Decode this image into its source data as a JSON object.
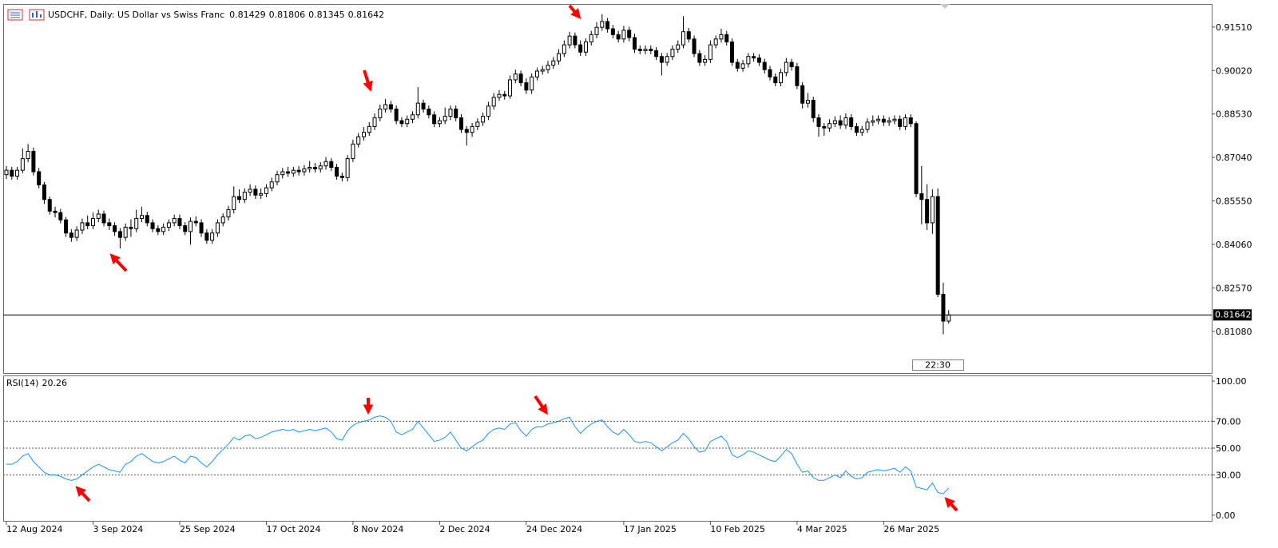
{
  "chart_data": [
    {
      "type": "candlestick",
      "title": "USDCHF, Daily:  US Dollar vs Swiss Franc",
      "timer": "22:30",
      "series": [
        {
          "name": "USDCHF",
          "up_color": "#ffffff",
          "down_color": "#000000",
          "edge_color": "#000000",
          "open": [
            0.8645,
            0.866,
            0.864,
            0.866,
            0.87,
            0.8725,
            0.8655,
            0.861,
            0.856,
            0.852,
            0.8515,
            0.849,
            0.8445,
            0.843,
            0.8455,
            0.848,
            0.847,
            0.8495,
            0.851,
            0.848,
            0.847,
            0.845,
            0.843,
            0.8465,
            0.846,
            0.8495,
            0.8505,
            0.848,
            0.846,
            0.845,
            0.8465,
            0.848,
            0.8495,
            0.847,
            0.845,
            0.8485,
            0.848,
            0.8445,
            0.842,
            0.8445,
            0.848,
            0.85,
            0.8525,
            0.857,
            0.856,
            0.8585,
            0.8595,
            0.8575,
            0.858,
            0.86,
            0.862,
            0.8645,
            0.8655,
            0.865,
            0.866,
            0.8655,
            0.8665,
            0.867,
            0.8665,
            0.8675,
            0.869,
            0.867,
            0.864,
            0.8635,
            0.87,
            0.875,
            0.8775,
            0.879,
            0.881,
            0.884,
            0.887,
            0.8885,
            0.887,
            0.883,
            0.882,
            0.8835,
            0.885,
            0.889,
            0.887,
            0.885,
            0.882,
            0.883,
            0.8845,
            0.887,
            0.884,
            0.88,
            0.879,
            0.881,
            0.8825,
            0.8845,
            0.888,
            0.891,
            0.892,
            0.8915,
            0.897,
            0.899,
            0.896,
            0.8935,
            0.898,
            0.9,
            0.9005,
            0.902,
            0.9035,
            0.906,
            0.909,
            0.912,
            0.909,
            0.9065,
            0.91,
            0.9125,
            0.915,
            0.917,
            0.9145,
            0.9125,
            0.911,
            0.914,
            0.9115,
            0.9075,
            0.907,
            0.9075,
            0.907,
            0.905,
            0.903,
            0.905,
            0.9075,
            0.909,
            0.9135,
            0.911,
            0.906,
            0.903,
            0.904,
            0.909,
            0.911,
            0.9125,
            0.91,
            0.903,
            0.901,
            0.9025,
            0.905,
            0.9045,
            0.903,
            0.9005,
            0.898,
            0.896,
            0.8995,
            0.903,
            0.9015,
            0.895,
            0.889,
            0.89,
            0.884,
            0.881,
            0.8805,
            0.882,
            0.883,
            0.8815,
            0.884,
            0.881,
            0.879,
            0.88,
            0.8825,
            0.883,
            0.8835,
            0.8825,
            0.883,
            0.8835,
            0.881,
            0.884,
            0.882,
            0.858,
            0.856,
            0.848,
            0.857,
            0.8235,
            0.81429
          ],
          "high": [
            0.8675,
            0.8672,
            0.8672,
            0.8735,
            0.875,
            0.8738,
            0.8668,
            0.862,
            0.857,
            0.8535,
            0.8528,
            0.85,
            0.8458,
            0.8468,
            0.8495,
            0.8505,
            0.8515,
            0.8525,
            0.8522,
            0.8495,
            0.8482,
            0.8462,
            0.8478,
            0.8492,
            0.8525,
            0.8535,
            0.8518,
            0.8492,
            0.8472,
            0.8478,
            0.8492,
            0.8508,
            0.8508,
            0.8482,
            0.8498,
            0.8502,
            0.8492,
            0.8458,
            0.8458,
            0.8492,
            0.8512,
            0.8538,
            0.8605,
            0.8595,
            0.8598,
            0.8612,
            0.8608,
            0.8598,
            0.8612,
            0.8635,
            0.8658,
            0.8668,
            0.8672,
            0.8672,
            0.8675,
            0.8678,
            0.8692,
            0.8685,
            0.8688,
            0.8705,
            0.8702,
            0.8682,
            0.8652,
            0.8712,
            0.8765,
            0.8788,
            0.8808,
            0.8825,
            0.8855,
            0.8885,
            0.8905,
            0.8898,
            0.8882,
            0.8842,
            0.8848,
            0.8862,
            0.8945,
            0.8902,
            0.8882,
            0.8862,
            0.8842,
            0.8875,
            0.8882,
            0.8882,
            0.8852,
            0.8812,
            0.8822,
            0.8838,
            0.8858,
            0.8895,
            0.8925,
            0.8935,
            0.8932,
            0.8985,
            0.9005,
            0.9002,
            0.8975,
            0.8992,
            0.9012,
            0.9018,
            0.9035,
            0.9048,
            0.9075,
            0.9105,
            0.9135,
            0.9132,
            0.9105,
            0.9112,
            0.9138,
            0.9168,
            0.9195,
            0.9182,
            0.9158,
            0.9138,
            0.9155,
            0.9152,
            0.9128,
            0.9088,
            0.9088,
            0.9088,
            0.9082,
            0.9062,
            0.9062,
            0.9088,
            0.9105,
            0.9188,
            0.9148,
            0.9122,
            0.9072,
            0.9055,
            0.9105,
            0.9122,
            0.9145,
            0.9138,
            0.9112,
            0.9042,
            0.9038,
            0.9062,
            0.9062,
            0.9058,
            0.9042,
            0.9018,
            0.8992,
            0.9008,
            0.9045,
            0.9042,
            0.9028,
            0.8962,
            0.8925,
            0.8912,
            0.8852,
            0.8822,
            0.8835,
            0.8845,
            0.8848,
            0.8855,
            0.8852,
            0.8822,
            0.8812,
            0.8838,
            0.8848,
            0.8848,
            0.8848,
            0.8842,
            0.8848,
            0.8848,
            0.8852,
            0.8852,
            0.8828,
            0.8675,
            0.8612,
            0.8595,
            0.8598,
            0.8275,
            0.81806
          ],
          "low": [
            0.863,
            0.8628,
            0.8628,
            0.865,
            0.8688,
            0.8642,
            0.8598,
            0.8545,
            0.8508,
            0.8498,
            0.8478,
            0.8432,
            0.8415,
            0.8418,
            0.8442,
            0.8458,
            0.8458,
            0.8482,
            0.8468,
            0.8455,
            0.8435,
            0.8392,
            0.8418,
            0.8432,
            0.8448,
            0.8482,
            0.8468,
            0.8448,
            0.8438,
            0.8438,
            0.8452,
            0.8468,
            0.8458,
            0.8438,
            0.8405,
            0.8468,
            0.8432,
            0.8408,
            0.8408,
            0.8432,
            0.8468,
            0.8488,
            0.8512,
            0.8548,
            0.8548,
            0.8572,
            0.8562,
            0.8562,
            0.8568,
            0.8588,
            0.8608,
            0.8632,
            0.8638,
            0.8638,
            0.8642,
            0.8642,
            0.8652,
            0.8652,
            0.8652,
            0.8662,
            0.8658,
            0.8628,
            0.8622,
            0.8622,
            0.8688,
            0.8738,
            0.8762,
            0.8778,
            0.8798,
            0.8828,
            0.8858,
            0.8858,
            0.8818,
            0.8808,
            0.8808,
            0.8822,
            0.8838,
            0.8858,
            0.8838,
            0.8808,
            0.8808,
            0.8818,
            0.8832,
            0.8828,
            0.8788,
            0.8745,
            0.8775,
            0.8798,
            0.8812,
            0.8832,
            0.8868,
            0.8898,
            0.8902,
            0.8905,
            0.8958,
            0.8948,
            0.8922,
            0.8922,
            0.8968,
            0.8988,
            0.8992,
            0.9008,
            0.9022,
            0.9048,
            0.9078,
            0.9078,
            0.9052,
            0.9052,
            0.9088,
            0.9112,
            0.9138,
            0.9132,
            0.9112,
            0.9098,
            0.9098,
            0.9102,
            0.9062,
            0.9058,
            0.9058,
            0.9058,
            0.9038,
            0.8985,
            0.9018,
            0.9038,
            0.9062,
            0.9078,
            0.9098,
            0.9048,
            0.9018,
            0.9018,
            0.9028,
            0.9078,
            0.9098,
            0.9088,
            0.9018,
            0.8998,
            0.8998,
            0.9012,
            0.9032,
            0.9018,
            0.8992,
            0.8968,
            0.8948,
            0.8948,
            0.8982,
            0.9002,
            0.8938,
            0.8872,
            0.8875,
            0.8825,
            0.8775,
            0.8778,
            0.8792,
            0.8808,
            0.8802,
            0.8802,
            0.8798,
            0.8778,
            0.8778,
            0.8788,
            0.8812,
            0.8818,
            0.8812,
            0.8812,
            0.8818,
            0.8798,
            0.8798,
            0.8808,
            0.8568,
            0.8475,
            0.8455,
            0.8442,
            0.8225,
            0.8098,
            0.81345
          ],
          "close": [
            0.866,
            0.864,
            0.866,
            0.87,
            0.8725,
            0.8655,
            0.861,
            0.856,
            0.852,
            0.8515,
            0.849,
            0.8445,
            0.843,
            0.8455,
            0.848,
            0.847,
            0.8495,
            0.851,
            0.848,
            0.847,
            0.845,
            0.843,
            0.8465,
            0.846,
            0.8495,
            0.8505,
            0.848,
            0.846,
            0.845,
            0.8465,
            0.848,
            0.8495,
            0.847,
            0.845,
            0.8485,
            0.848,
            0.8445,
            0.842,
            0.8445,
            0.848,
            0.85,
            0.8525,
            0.857,
            0.856,
            0.8585,
            0.8595,
            0.8575,
            0.858,
            0.86,
            0.862,
            0.8645,
            0.8655,
            0.865,
            0.866,
            0.8655,
            0.8665,
            0.867,
            0.8665,
            0.8675,
            0.869,
            0.867,
            0.864,
            0.8635,
            0.87,
            0.875,
            0.8775,
            0.879,
            0.881,
            0.884,
            0.887,
            0.8885,
            0.887,
            0.883,
            0.882,
            0.8835,
            0.885,
            0.889,
            0.887,
            0.885,
            0.882,
            0.883,
            0.8845,
            0.887,
            0.884,
            0.88,
            0.879,
            0.881,
            0.8825,
            0.8845,
            0.888,
            0.891,
            0.892,
            0.8915,
            0.897,
            0.899,
            0.896,
            0.8935,
            0.898,
            0.9,
            0.9005,
            0.902,
            0.9035,
            0.906,
            0.909,
            0.912,
            0.909,
            0.9065,
            0.91,
            0.9125,
            0.915,
            0.917,
            0.9145,
            0.9125,
            0.911,
            0.914,
            0.9115,
            0.9075,
            0.907,
            0.9075,
            0.907,
            0.905,
            0.903,
            0.905,
            0.9075,
            0.909,
            0.9135,
            0.911,
            0.906,
            0.903,
            0.904,
            0.909,
            0.911,
            0.9125,
            0.91,
            0.903,
            0.901,
            0.9025,
            0.905,
            0.9045,
            0.903,
            0.9005,
            0.898,
            0.896,
            0.8995,
            0.903,
            0.9015,
            0.895,
            0.889,
            0.89,
            0.884,
            0.881,
            0.8805,
            0.882,
            0.883,
            0.8815,
            0.884,
            0.881,
            0.879,
            0.88,
            0.8825,
            0.883,
            0.8835,
            0.8825,
            0.883,
            0.8835,
            0.881,
            0.884,
            0.882,
            0.858,
            0.856,
            0.848,
            0.857,
            0.8235,
            0.81429,
            0.81642
          ]
        }
      ],
      "ylim": [
        0.7965,
        0.923
      ],
      "yticks": [
        {
          "value": 0.9151,
          "label": "0.91510"
        },
        {
          "value": 0.9002,
          "label": "0.90020"
        },
        {
          "value": 0.8853,
          "label": "0.88530"
        },
        {
          "value": 0.8704,
          "label": "0.87040"
        },
        {
          "value": 0.8555,
          "label": "0.85550"
        },
        {
          "value": 0.8406,
          "label": "0.84060"
        },
        {
          "value": 0.8257,
          "label": "0.82570"
        },
        {
          "value": 0.8108,
          "label": "0.81080"
        }
      ],
      "price_line": true
    },
    {
      "type": "line",
      "series": [
        {
          "name": "RSI(14)",
          "color": "#1e90ff",
          "values": [
            38,
            38,
            40,
            44,
            46,
            40,
            36,
            32,
            30,
            30,
            29,
            27,
            26,
            27,
            30,
            33,
            36,
            38,
            36,
            34,
            33,
            32,
            38,
            40,
            44,
            46,
            43,
            40,
            39,
            40,
            42,
            44,
            41,
            39,
            44,
            43,
            39,
            36,
            40,
            45,
            49,
            53,
            58,
            56,
            59,
            60,
            57,
            58,
            60,
            62,
            63,
            64,
            63,
            64,
            62,
            63,
            64,
            63,
            64,
            65,
            62,
            57,
            56,
            63,
            67,
            69,
            70,
            71,
            73,
            74,
            73,
            70,
            62,
            60,
            62,
            64,
            70,
            65,
            60,
            55,
            56,
            58,
            62,
            56,
            50,
            48,
            51,
            54,
            56,
            61,
            64,
            65,
            64,
            68,
            69,
            63,
            59,
            64,
            66,
            66,
            68,
            69,
            70,
            72,
            73,
            66,
            61,
            65,
            68,
            70,
            71,
            66,
            62,
            60,
            64,
            60,
            55,
            54,
            55,
            54,
            51,
            48,
            51,
            54,
            56,
            61,
            57,
            51,
            47,
            48,
            55,
            57,
            59,
            55,
            45,
            43,
            45,
            48,
            47,
            45,
            43,
            41,
            40,
            44,
            49,
            46,
            38,
            32,
            33,
            28,
            26,
            26,
            28,
            30,
            28,
            33,
            29,
            27,
            28,
            32,
            33,
            34,
            33,
            34,
            35,
            32,
            36,
            33,
            21,
            20,
            19,
            24,
            17,
            16,
            20.26
          ]
        }
      ],
      "ylim": [
        -4.2,
        104.2
      ],
      "yticks": [
        {
          "value": 100,
          "label": "100.00"
        },
        {
          "value": 70,
          "label": "70.00"
        },
        {
          "value": 50,
          "label": "50.00"
        },
        {
          "value": 30,
          "label": "30.00"
        },
        {
          "value": 0,
          "label": "0.00"
        }
      ],
      "levels": [
        70,
        50,
        30
      ],
      "xticks": [
        {
          "value": 0,
          "label": "12 Aug 2024"
        },
        {
          "value": 16,
          "label": "3 Sep 2024"
        },
        {
          "value": 32,
          "label": "25 Sep 2024"
        },
        {
          "value": 48,
          "label": "17 Oct 2024"
        },
        {
          "value": 64,
          "label": "8 Nov 2024"
        },
        {
          "value": 80,
          "label": "2 Dec 2024"
        },
        {
          "value": 96,
          "label": "24 Dec 2024"
        },
        {
          "value": 114,
          "label": "17 Jan 2025"
        },
        {
          "value": 130,
          "label": "10 Feb 2025"
        },
        {
          "value": 146,
          "label": "4 Mar 2025"
        },
        {
          "value": 162,
          "label": "26 Mar 2025"
        }
      ]
    }
  ]
}
